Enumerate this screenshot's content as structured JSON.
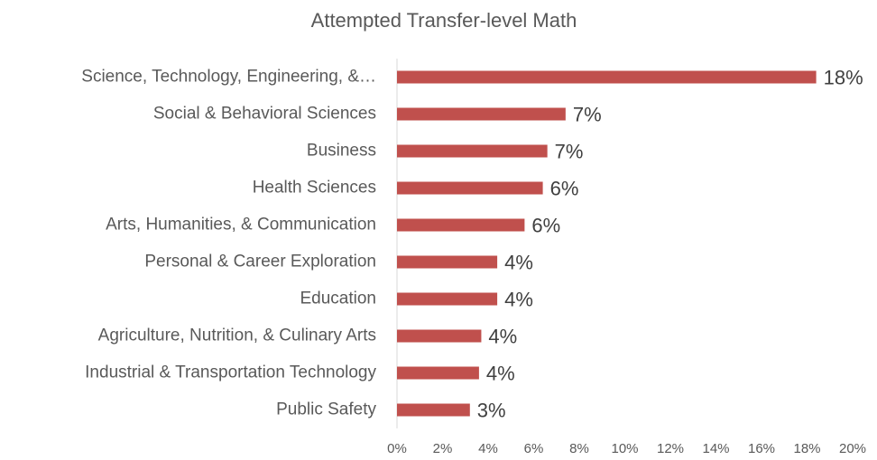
{
  "chart_data": {
    "type": "hbar",
    "title": "Attempted Transfer-level Math",
    "categories": [
      "Science, Technology, Engineering, &…",
      "Social & Behavioral Sciences",
      "Business",
      "Health Sciences",
      "Arts, Humanities, & Communication",
      "Personal & Career Exploration",
      "Education",
      "Agriculture, Nutrition, & Culinary Arts",
      "Industrial & Transportation Technology",
      "Public Safety"
    ],
    "values": [
      18.4,
      7.4,
      6.6,
      6.4,
      5.6,
      4.4,
      4.4,
      3.7,
      3.6,
      3.2
    ],
    "value_labels": [
      "18%",
      "7%",
      "7%",
      "6%",
      "6%",
      "4%",
      "4%",
      "4%",
      "4%",
      "3%"
    ],
    "color": "#c0504d",
    "xlim": [
      0,
      20
    ],
    "xticks": [
      {
        "value": 0,
        "label": "0%"
      },
      {
        "value": 2,
        "label": "2%"
      },
      {
        "value": 4,
        "label": "4%"
      },
      {
        "value": 6,
        "label": "6%"
      },
      {
        "value": 8,
        "label": "8%"
      },
      {
        "value": 10,
        "label": "10%"
      },
      {
        "value": 12,
        "label": "12%"
      },
      {
        "value": 14,
        "label": "14%"
      },
      {
        "value": 16,
        "label": "16%"
      },
      {
        "value": 18,
        "label": "18%"
      },
      {
        "value": 20,
        "label": "20%"
      }
    ],
    "grid": false
  }
}
